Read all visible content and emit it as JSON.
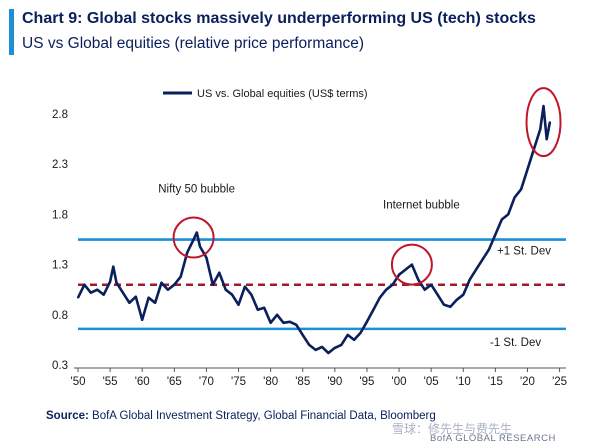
{
  "header": {
    "title": "Chart 9: Global stocks massively underperforming US (tech) stocks",
    "subtitle": "US vs Global equities (relative price performance)",
    "accent_color": "#1c8fd6"
  },
  "footer": {
    "source_label": "Source:",
    "source_text": "BofA Global Investment Strategy, Global Financial Data, Bloomberg",
    "brand": "BofA GLOBAL RESEARCH",
    "watermark": "雪球：修先生与费先生"
  },
  "chart_data": {
    "type": "line",
    "title": "Chart 9: Global stocks massively underperforming US (tech) stocks",
    "subtitle": "US vs Global equities (relative price performance)",
    "xlabel": "",
    "ylabel": "",
    "xlim": [
      1950,
      2026
    ],
    "ylim": [
      0.3,
      2.95
    ],
    "x_ticks": [
      1950,
      1955,
      1960,
      1965,
      1970,
      1975,
      1980,
      1985,
      1990,
      1995,
      2000,
      2005,
      2010,
      2015,
      2020,
      2025
    ],
    "x_tick_labels": [
      "'50",
      "'55",
      "'60",
      "'65",
      "'70",
      "'75",
      "'80",
      "'85",
      "'90",
      "'95",
      "'00",
      "'05",
      "'10",
      "'15",
      "'20",
      "'25"
    ],
    "y_ticks": [
      0.3,
      0.8,
      1.3,
      1.8,
      2.3,
      2.8
    ],
    "y_tick_labels": [
      "0.3",
      "0.8",
      "1.3",
      "1.8",
      "2.3",
      "2.8"
    ],
    "grid": false,
    "legend_position": "top-left",
    "series": [
      {
        "name": "US vs. Global equities (US$ terms)",
        "color": "#0a1f5c",
        "x": [
          1950,
          1951,
          1952,
          1953,
          1954,
          1955,
          1955.5,
          1956,
          1957,
          1958,
          1959,
          1960,
          1961,
          1962,
          1963,
          1964,
          1965,
          1966,
          1967,
          1968,
          1968.5,
          1969,
          1970,
          1971,
          1972,
          1973,
          1974,
          1975,
          1976,
          1977,
          1978,
          1979,
          1980,
          1981,
          1982,
          1983,
          1984,
          1985,
          1986,
          1987,
          1988,
          1989,
          1990,
          1991,
          1992,
          1993,
          1994,
          1995,
          1996,
          1997,
          1998,
          1999,
          2000,
          2001,
          2002,
          2003,
          2004,
          2005,
          2006,
          2007,
          2008,
          2009,
          2010,
          2011,
          2012,
          2013,
          2014,
          2015,
          2016,
          2017,
          2018,
          2019,
          2020,
          2021,
          2022,
          2022.5,
          2023,
          2023.5
        ],
        "y": [
          0.97,
          1.1,
          1.02,
          1.05,
          1.0,
          1.13,
          1.28,
          1.12,
          1.02,
          0.92,
          0.98,
          0.75,
          0.97,
          0.92,
          1.12,
          1.05,
          1.1,
          1.18,
          1.42,
          1.55,
          1.62,
          1.48,
          1.37,
          1.1,
          1.22,
          1.05,
          1.0,
          0.9,
          1.08,
          1.0,
          0.85,
          0.87,
          0.72,
          0.8,
          0.72,
          0.73,
          0.7,
          0.6,
          0.5,
          0.45,
          0.48,
          0.42,
          0.47,
          0.5,
          0.6,
          0.55,
          0.62,
          0.73,
          0.85,
          0.97,
          1.05,
          1.1,
          1.2,
          1.25,
          1.3,
          1.15,
          1.05,
          1.1,
          1.0,
          0.9,
          0.88,
          0.95,
          1.0,
          1.15,
          1.25,
          1.35,
          1.45,
          1.6,
          1.75,
          1.8,
          1.97,
          2.05,
          2.25,
          2.45,
          2.65,
          2.88,
          2.55,
          2.72
        ]
      }
    ],
    "reference_lines": [
      {
        "name": "+1 St. Dev",
        "y": 1.55,
        "color": "#1c8fd6",
        "style": "solid"
      },
      {
        "name": "mean",
        "y": 1.1,
        "color": "#a31a2e",
        "style": "dashed"
      },
      {
        "name": "-1 St. Dev",
        "y": 0.66,
        "color": "#1c8fd6",
        "style": "solid"
      }
    ],
    "annotations": [
      {
        "text": "Nifty 50 bubble",
        "x": 1968,
        "y": 1.57,
        "circled": true,
        "label_x": 1962.5,
        "label_y": 2.02
      },
      {
        "text": "Internet bubble",
        "x": 2002,
        "y": 1.3,
        "circled": true,
        "label_x": 1997.5,
        "label_y": 1.86
      },
      {
        "text": "",
        "x": 2022.5,
        "y": 2.72,
        "circled": true
      }
    ],
    "circle_color": "#c0162a"
  }
}
